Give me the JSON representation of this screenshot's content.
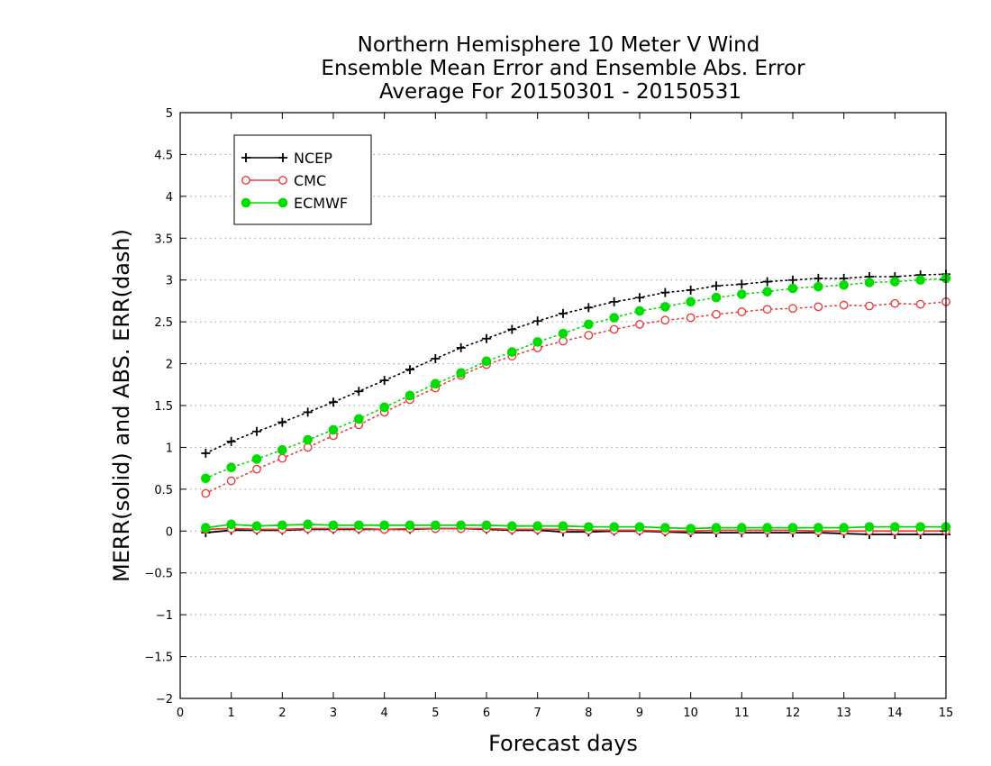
{
  "chart_data": {
    "type": "line",
    "title_lines": [
      "Northern Hemisphere 10 Meter V Wind",
      "Ensemble Mean Error and Ensemble Abs. Error",
      "Average For 20150301 - 20150531"
    ],
    "xlabel": "Forecast days",
    "ylabel": "MERR(solid) and ABS. ERR(dash)",
    "xlim": [
      0,
      15
    ],
    "ylim": [
      -2,
      5
    ],
    "x_ticks": [
      "0",
      "1",
      "2",
      "3",
      "4",
      "5",
      "6",
      "7",
      "8",
      "9",
      "10",
      "11",
      "12",
      "13",
      "14",
      "15"
    ],
    "y_ticks": [
      "5",
      "4.5",
      "4",
      "3.5",
      "3",
      "2.5",
      "2",
      "1.5",
      "1",
      "0.5",
      "0",
      "−0.5",
      "−1",
      "−1.5",
      "−2"
    ],
    "grid": "horizontal dotted",
    "legend_placement": "top-left",
    "x": [
      0.5,
      1,
      1.5,
      2,
      2.5,
      3,
      3.5,
      4,
      4.5,
      5,
      5.5,
      6,
      6.5,
      7,
      7.5,
      8,
      8.5,
      9,
      9.5,
      10,
      10.5,
      11,
      11.5,
      12,
      12.5,
      13,
      13.5,
      14,
      14.5,
      15
    ],
    "series": [
      {
        "name": "NCEP",
        "color": "#000000",
        "marker": "plus",
        "abs_err": [
          0.93,
          1.07,
          1.19,
          1.3,
          1.42,
          1.54,
          1.67,
          1.8,
          1.93,
          2.06,
          2.19,
          2.3,
          2.41,
          2.51,
          2.6,
          2.67,
          2.74,
          2.79,
          2.85,
          2.88,
          2.93,
          2.95,
          2.98,
          3.0,
          3.02,
          3.02,
          3.04,
          3.04,
          3.06,
          3.07
        ],
        "mean_err": [
          -0.02,
          0.01,
          0.01,
          0.01,
          0.02,
          0.02,
          0.02,
          0.02,
          0.02,
          0.03,
          0.03,
          0.02,
          0.01,
          0.01,
          -0.01,
          -0.01,
          0.0,
          0.0,
          -0.01,
          -0.02,
          -0.02,
          -0.02,
          -0.02,
          -0.02,
          -0.02,
          -0.03,
          -0.04,
          -0.04,
          -0.04,
          -0.04
        ]
      },
      {
        "name": "CMC",
        "color": "#ee3b3b",
        "marker": "open-circle",
        "abs_err": [
          0.45,
          0.6,
          0.74,
          0.87,
          1.0,
          1.14,
          1.27,
          1.42,
          1.57,
          1.71,
          1.86,
          1.99,
          2.09,
          2.19,
          2.27,
          2.34,
          2.41,
          2.47,
          2.52,
          2.55,
          2.59,
          2.62,
          2.65,
          2.66,
          2.68,
          2.7,
          2.69,
          2.72,
          2.71,
          2.74
        ],
        "mean_err": [
          0.02,
          0.03,
          0.02,
          0.02,
          0.03,
          0.03,
          0.03,
          0.02,
          0.03,
          0.03,
          0.03,
          0.03,
          0.02,
          0.02,
          0.02,
          0.01,
          0.01,
          0.01,
          0.0,
          0.0,
          0.01,
          0.01,
          0.01,
          0.01,
          0.0,
          0.0,
          0.0,
          0.0,
          0.0,
          0.0
        ]
      },
      {
        "name": "ECMWF",
        "color": "#00dd00",
        "marker": "filled-circle",
        "abs_err": [
          0.63,
          0.76,
          0.86,
          0.97,
          1.09,
          1.21,
          1.34,
          1.48,
          1.62,
          1.76,
          1.89,
          2.03,
          2.14,
          2.26,
          2.36,
          2.47,
          2.55,
          2.63,
          2.68,
          2.74,
          2.79,
          2.83,
          2.86,
          2.9,
          2.92,
          2.94,
          2.97,
          2.98,
          3.0,
          3.02
        ],
        "mean_err": [
          0.04,
          0.08,
          0.06,
          0.07,
          0.08,
          0.07,
          0.07,
          0.07,
          0.07,
          0.07,
          0.07,
          0.07,
          0.06,
          0.06,
          0.06,
          0.05,
          0.05,
          0.05,
          0.04,
          0.03,
          0.04,
          0.04,
          0.04,
          0.04,
          0.04,
          0.04,
          0.05,
          0.05,
          0.05,
          0.05
        ]
      }
    ]
  }
}
